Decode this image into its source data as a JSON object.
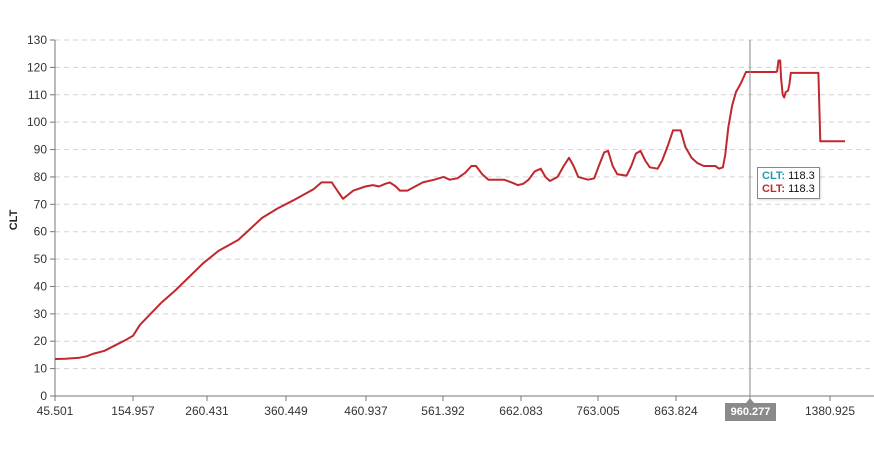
{
  "chart_data": {
    "type": "line",
    "ylabel": "CLT",
    "ylim": [
      0,
      130
    ],
    "y_ticks": [
      "0",
      "10",
      "20",
      "30",
      "40",
      "50",
      "60",
      "70",
      "80",
      "90",
      "100",
      "110",
      "120",
      "130"
    ],
    "x_ticks": [
      "45.501",
      "154.957",
      "260.431",
      "360.449",
      "460.937",
      "561.392",
      "662.083",
      "763.005",
      "863.824",
      "1380.925"
    ],
    "grid": true,
    "series": [
      {
        "color": "#c0282e",
        "points": [
          [
            45.5,
            13.5
          ],
          [
            60,
            13.6
          ],
          [
            80,
            14
          ],
          [
            90,
            14.5
          ],
          [
            100,
            15.5
          ],
          [
            115,
            16.5
          ],
          [
            130,
            18.5
          ],
          [
            145,
            20.5
          ],
          [
            155,
            22
          ],
          [
            165,
            26
          ],
          [
            180,
            30
          ],
          [
            195,
            34
          ],
          [
            215,
            38.5
          ],
          [
            235,
            43.5
          ],
          [
            255,
            48.5
          ],
          [
            275,
            53
          ],
          [
            300,
            57
          ],
          [
            315,
            61
          ],
          [
            330,
            65
          ],
          [
            350,
            68.5
          ],
          [
            370,
            71.5
          ],
          [
            395,
            75.5
          ],
          [
            405,
            78
          ],
          [
            418,
            78
          ],
          [
            426,
            74.5
          ],
          [
            432,
            72
          ],
          [
            445,
            75
          ],
          [
            460,
            76.5
          ],
          [
            470,
            77
          ],
          [
            478,
            76.5
          ],
          [
            486,
            77.5
          ],
          [
            492,
            78
          ],
          [
            500,
            76.5
          ],
          [
            505,
            75
          ],
          [
            515,
            75
          ],
          [
            525,
            76.5
          ],
          [
            535,
            78
          ],
          [
            550,
            79
          ],
          [
            562,
            80
          ],
          [
            570,
            79
          ],
          [
            580,
            79.5
          ],
          [
            590,
            81.5
          ],
          [
            598,
            84
          ],
          [
            604,
            84
          ],
          [
            612,
            81
          ],
          [
            620,
            79
          ],
          [
            640,
            79
          ],
          [
            650,
            78
          ],
          [
            658,
            77
          ],
          [
            665,
            77.5
          ],
          [
            672,
            79
          ],
          [
            680,
            82
          ],
          [
            688,
            83
          ],
          [
            694,
            80
          ],
          [
            700,
            78.5
          ],
          [
            710,
            80
          ],
          [
            718,
            84
          ],
          [
            725,
            87
          ],
          [
            731,
            84
          ],
          [
            737,
            80
          ],
          [
            750,
            79
          ],
          [
            758,
            79.5
          ],
          [
            764,
            84
          ],
          [
            771,
            89
          ],
          [
            776,
            89.5
          ],
          [
            782,
            84
          ],
          [
            788,
            81
          ],
          [
            800,
            80.5
          ],
          [
            806,
            84
          ],
          [
            812,
            88.5
          ],
          [
            818,
            89.5
          ],
          [
            824,
            86
          ],
          [
            830,
            83.5
          ],
          [
            840,
            83
          ],
          [
            846,
            86
          ],
          [
            854,
            92
          ],
          [
            860,
            97
          ],
          [
            870,
            97
          ],
          [
            876,
            91
          ],
          [
            884,
            87
          ],
          [
            892,
            85
          ],
          [
            900,
            84
          ],
          [
            915,
            84
          ],
          [
            920,
            83
          ],
          [
            925,
            83.5
          ],
          [
            928,
            88
          ],
          [
            932,
            98
          ],
          [
            937,
            106
          ],
          [
            942,
            111
          ],
          [
            948,
            114
          ],
          [
            955,
            118.3
          ],
          [
            960.277,
            118.3
          ],
          [
            985,
            118.3
          ],
          [
            1030,
            118.3
          ],
          [
            1070,
            118.3
          ],
          [
            1095,
            118.3
          ],
          [
            1103,
            118.5
          ],
          [
            1110,
            122.5
          ],
          [
            1119,
            122.5
          ],
          [
            1124,
            116
          ],
          [
            1132,
            110
          ],
          [
            1140,
            109
          ],
          [
            1148,
            111
          ],
          [
            1160,
            111.5
          ],
          [
            1168,
            114
          ],
          [
            1175,
            118
          ],
          [
            1187,
            118
          ],
          [
            1260,
            118
          ],
          [
            1300,
            118
          ],
          [
            1320,
            118
          ],
          [
            1330,
            93
          ],
          [
            1380.925,
            93
          ],
          [
            1460,
            93
          ]
        ]
      }
    ],
    "cursor": {
      "x_label": "960.277"
    },
    "tooltip": {
      "line1_key": "CLT:",
      "line1_value": "118.3",
      "line2_key": "CLT:",
      "line2_value": "118.3"
    }
  }
}
